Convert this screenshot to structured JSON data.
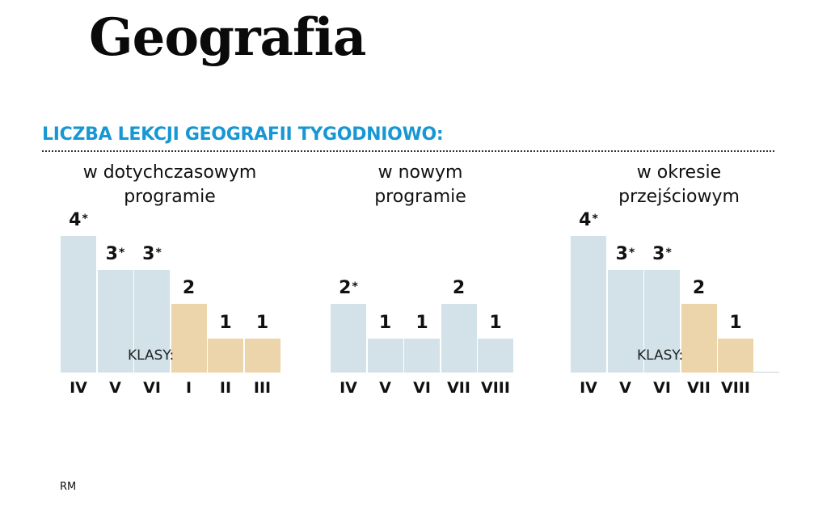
{
  "header": {
    "title": "Geografia",
    "subtitle": "LICZBA LEKCJI GEOGRAFII TYGODNIOWO:"
  },
  "colors": {
    "subtitle_blue": "#1797d3",
    "bar_blue": "#d2e2e8",
    "bar_tan": "#ecd4ab"
  },
  "klasy_label": "KLASY:",
  "footer": {
    "credit": "RM"
  },
  "chart_data": [
    {
      "type": "bar",
      "title": "w dotychczasowym programie",
      "title_lines": [
        "w dotychczasowym",
        "programie"
      ],
      "xlabel": "KLASY:",
      "categories": [
        "IV",
        "V",
        "VI",
        "I",
        "II",
        "III"
      ],
      "values": [
        4,
        3,
        3,
        2,
        1,
        1
      ],
      "labels": [
        "4",
        "3",
        "3",
        "2",
        "1",
        "1"
      ],
      "asterisk": [
        true,
        true,
        true,
        false,
        false,
        false
      ],
      "colors": [
        "blue",
        "blue",
        "blue",
        "tan",
        "tan",
        "tan"
      ]
    },
    {
      "type": "bar",
      "title": "w nowym programie",
      "title_lines": [
        "w nowym",
        "programie"
      ],
      "categories": [
        "IV",
        "V",
        "VI",
        "VII",
        "VIII"
      ],
      "values": [
        2,
        1,
        1,
        2,
        1
      ],
      "labels": [
        "2",
        "1",
        "1",
        "2",
        "1"
      ],
      "asterisk": [
        true,
        false,
        false,
        false,
        false
      ],
      "colors": [
        "blue",
        "blue",
        "blue",
        "blue",
        "blue"
      ]
    },
    {
      "type": "bar",
      "title": "w okresie przejściowym",
      "title_lines": [
        "w okresie",
        "przejściowym"
      ],
      "xlabel": "KLASY:",
      "categories": [
        "IV",
        "V",
        "VI",
        "VII",
        "VIII"
      ],
      "values": [
        4,
        3,
        3,
        2,
        1
      ],
      "labels": [
        "4",
        "3",
        "3",
        "2",
        "1"
      ],
      "asterisk": [
        true,
        true,
        true,
        false,
        false
      ],
      "colors": [
        "blue",
        "blue",
        "blue",
        "tan",
        "tan"
      ]
    }
  ]
}
